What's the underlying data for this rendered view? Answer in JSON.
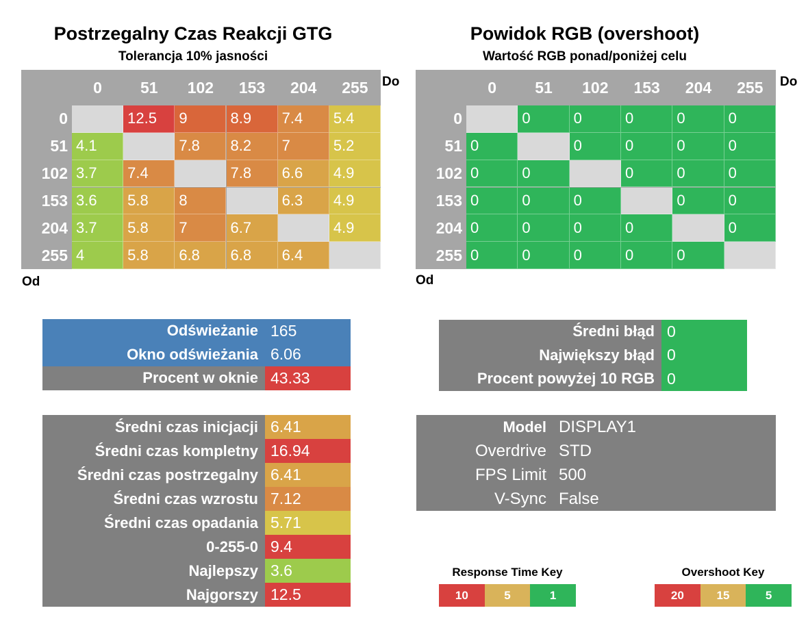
{
  "colors": {
    "header_gray": "#a6a6a6",
    "panel_gray": "#808080",
    "diag_gray": "#d9d9d9",
    "blue": "#4a81b8",
    "red": "#d8413f",
    "orange_red": "#d9663a",
    "orange": "#d98a45",
    "orange_yellow": "#d9a448",
    "yellow": "#d7c44a",
    "lime": "#9dcb4c",
    "green": "#2fb55a"
  },
  "left": {
    "title": "Postrzegalny Czas Reakcji GTG",
    "subtitle": "Tolerancja 10% jasności",
    "to_label": "Do",
    "from_label": "Od"
  },
  "right": {
    "title": "Powidok RGB (overshoot)",
    "subtitle": "Wartość RGB ponad/poniżej celu",
    "to_label": "Do",
    "from_label": "Od"
  },
  "chart_data": [
    {
      "type": "heatmap",
      "title": "Postrzegalny Czas Reakcji GTG",
      "subtitle": "Tolerancja 10% jasności",
      "xlabel": "Do",
      "ylabel": "Od",
      "x": [
        "0",
        "51",
        "102",
        "153",
        "204",
        "255"
      ],
      "y": [
        "0",
        "51",
        "102",
        "153",
        "204",
        "255"
      ],
      "values": [
        [
          null,
          12.5,
          9,
          8.9,
          7.4,
          5.4
        ],
        [
          4.1,
          null,
          7.8,
          8.2,
          7,
          5.2
        ],
        [
          3.7,
          7.4,
          null,
          7.8,
          6.6,
          4.9
        ],
        [
          3.6,
          5.8,
          8,
          null,
          6.3,
          4.9
        ],
        [
          3.7,
          5.8,
          7,
          6.7,
          null,
          4.9
        ],
        [
          4,
          5.8,
          6.8,
          6.8,
          6.4,
          null
        ]
      ]
    },
    {
      "type": "heatmap",
      "title": "Powidok RGB (overshoot)",
      "subtitle": "Wartość RGB ponad/poniżej celu",
      "xlabel": "Do",
      "ylabel": "Od",
      "x": [
        "0",
        "51",
        "102",
        "153",
        "204",
        "255"
      ],
      "y": [
        "0",
        "51",
        "102",
        "153",
        "204",
        "255"
      ],
      "values": [
        [
          null,
          0,
          0,
          0,
          0,
          0
        ],
        [
          0,
          null,
          0,
          0,
          0,
          0
        ],
        [
          0,
          0,
          null,
          0,
          0,
          0
        ],
        [
          0,
          0,
          0,
          null,
          0,
          0
        ],
        [
          0,
          0,
          0,
          0,
          null,
          0
        ],
        [
          0,
          0,
          0,
          0,
          0,
          null
        ]
      ]
    }
  ],
  "refresh_panel": [
    {
      "label": "Odświeżanie",
      "value": "165",
      "label_bg": "#4a81b8",
      "value_bg": "#4a81b8"
    },
    {
      "label": "Okno odświeżania",
      "value": "6.06",
      "label_bg": "#4a81b8",
      "value_bg": "#4a81b8"
    },
    {
      "label": "Procent w oknie",
      "value": "43.33",
      "label_bg": "#808080",
      "value_bg": "#d8413f"
    }
  ],
  "error_panel": [
    {
      "label": "Średni błąd",
      "value": "0",
      "value_bg": "#2fb55a"
    },
    {
      "label": "Największy błąd",
      "value": "0",
      "value_bg": "#2fb55a"
    },
    {
      "label": "Procent powyżej 10 RGB",
      "value": "0",
      "value_bg": "#2fb55a"
    }
  ],
  "times_panel": [
    {
      "label": "Średni czas inicjacji",
      "value": "6.41",
      "value_bg": "#d9a448"
    },
    {
      "label": "Średni czas kompletny",
      "value": "16.94",
      "value_bg": "#d8413f"
    },
    {
      "label": "Średni czas postrzegalny",
      "value": "6.41",
      "value_bg": "#d9a448"
    },
    {
      "label": "Średni czas wzrostu",
      "value": "7.12",
      "value_bg": "#d98a45"
    },
    {
      "label": "Średni czas opadania",
      "value": "5.71",
      "value_bg": "#d7c44a"
    },
    {
      "label": "0-255-0",
      "value": "9.4",
      "value_bg": "#d8413f"
    },
    {
      "label": "Najlepszy",
      "value": "3.6",
      "value_bg": "#9dcb4c"
    },
    {
      "label": "Najgorszy",
      "value": "12.5",
      "value_bg": "#d8413f"
    }
  ],
  "info_panel": [
    {
      "label": "Model",
      "value": "DISPLAY1",
      "bold": true
    },
    {
      "label": "Overdrive",
      "value": "STD",
      "bold": false
    },
    {
      "label": "FPS Limit",
      "value": "500",
      "bold": false
    },
    {
      "label": "V-Sync",
      "value": "False",
      "bold": false
    }
  ],
  "response_key": {
    "title": "Response Time Key",
    "items": [
      {
        "label": "10",
        "color": "#d8413f"
      },
      {
        "label": "5",
        "color": "#d9b35a"
      },
      {
        "label": "1",
        "color": "#2fb55a"
      }
    ]
  },
  "overshoot_key": {
    "title": "Overshoot Key",
    "items": [
      {
        "label": "20",
        "color": "#d8413f"
      },
      {
        "label": "15",
        "color": "#d9b35a"
      },
      {
        "label": "5",
        "color": "#2fb55a"
      }
    ]
  }
}
